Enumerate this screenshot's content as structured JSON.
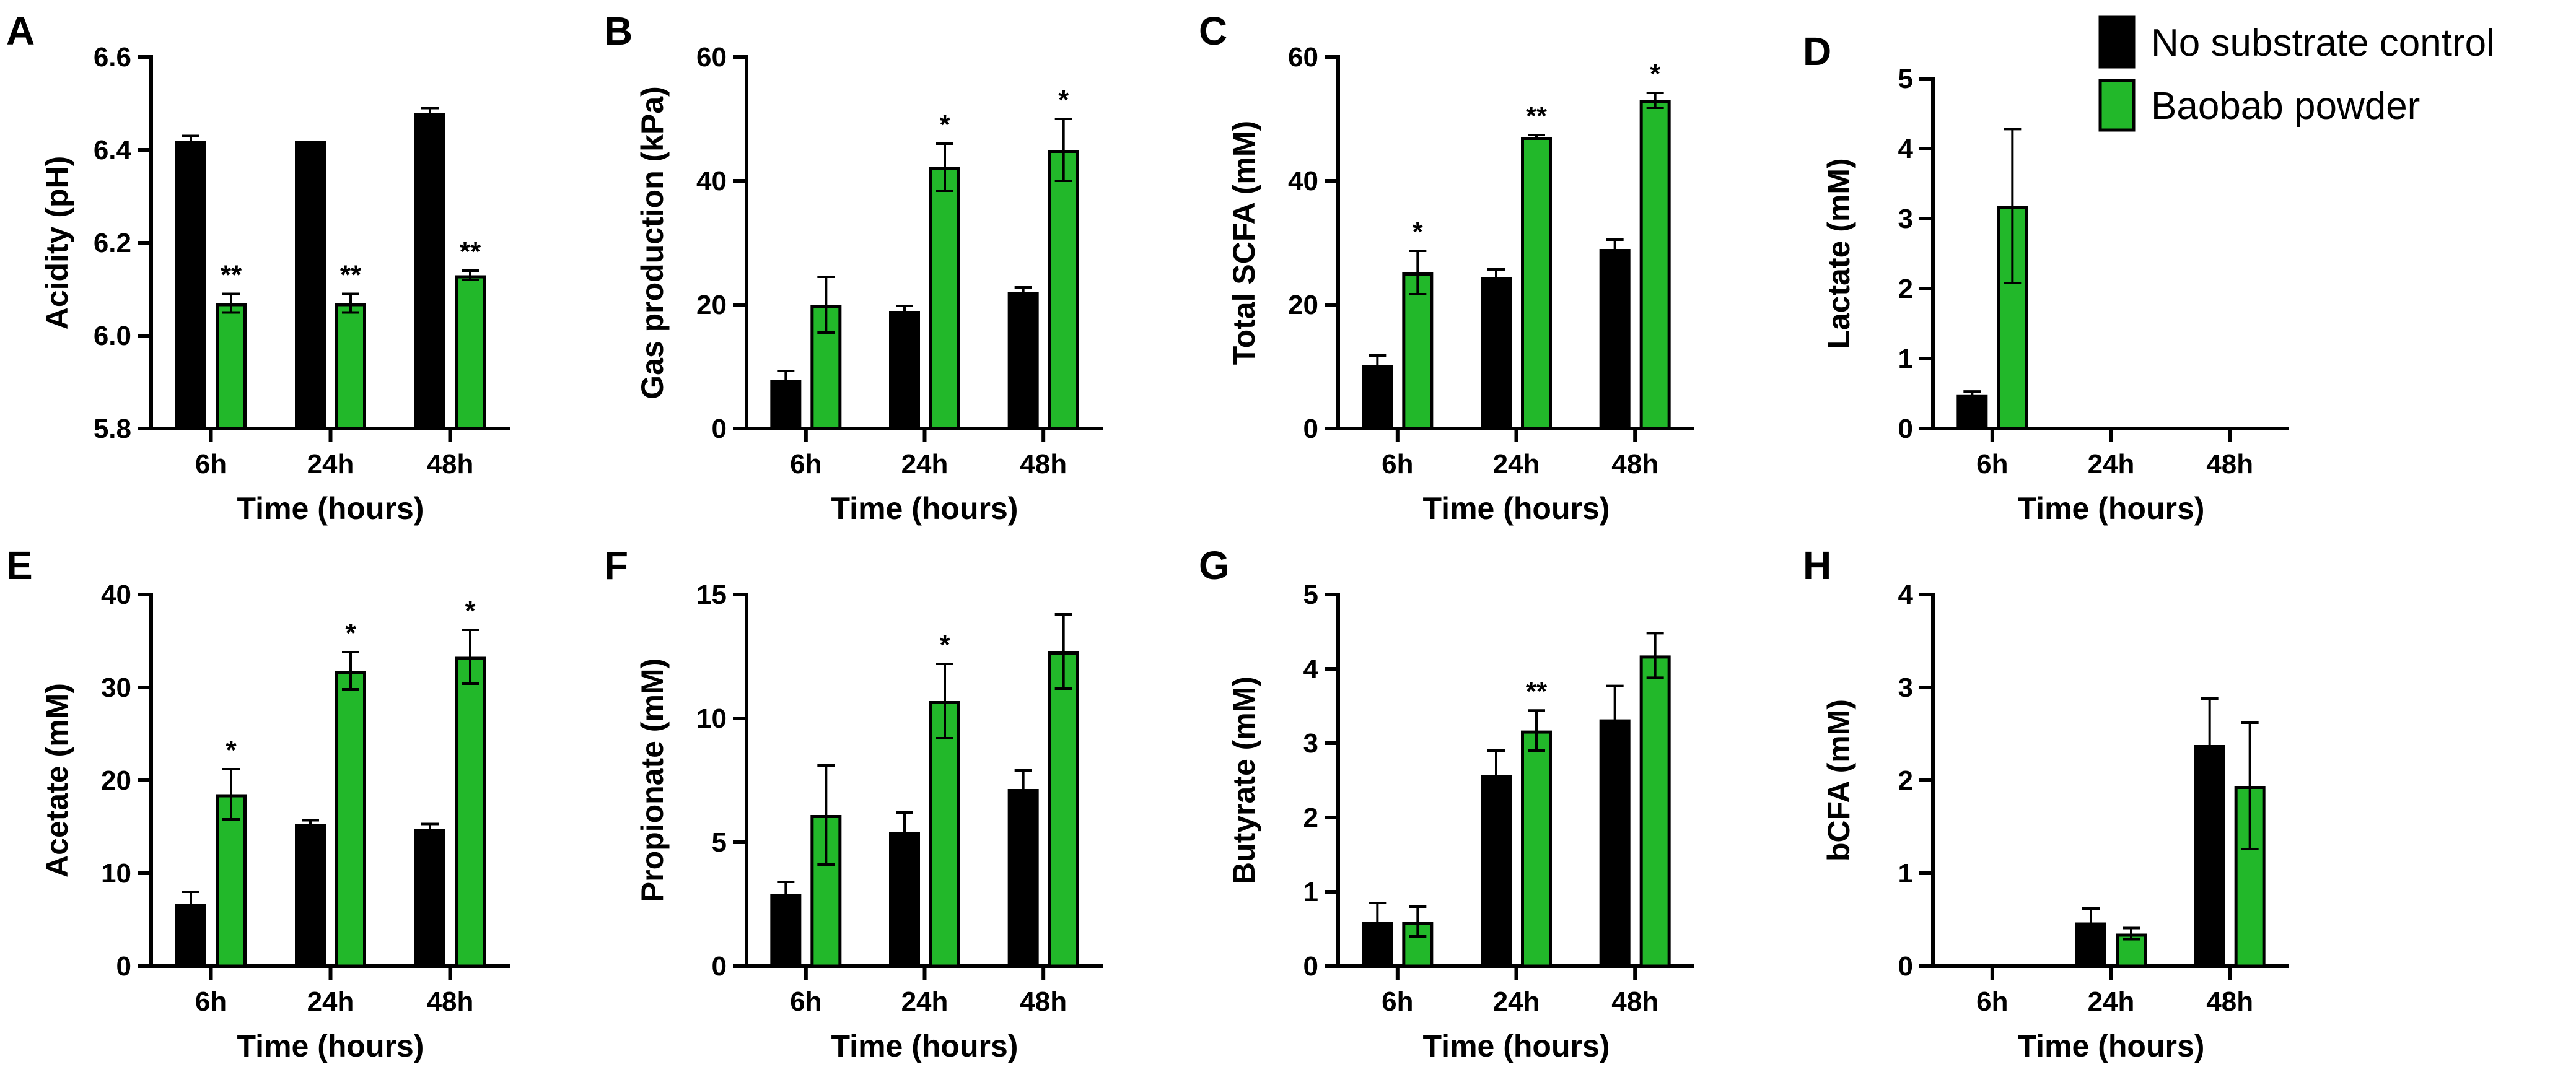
{
  "legend": {
    "items": [
      {
        "label": "No substrate control",
        "color": "#000000"
      },
      {
        "label": "Baobab powder",
        "color": "#22b82a"
      }
    ]
  },
  "colors": {
    "control": "#000000",
    "baobab": "#22b82a",
    "axis": "#000000"
  },
  "chart_data": [
    {
      "panel": "A",
      "type": "bar",
      "title": "",
      "xlabel": "Time (hours)",
      "ylabel": "Acidity (pH)",
      "categories": [
        "6h",
        "24h",
        "48h"
      ],
      "ylim": [
        5.8,
        6.6
      ],
      "yticks": [
        "5.8",
        "6.0",
        "6.2",
        "6.4",
        "6.6"
      ],
      "series": [
        {
          "name": "No substrate control",
          "values": [
            6.42,
            6.42,
            6.48
          ],
          "errors": [
            0.01,
            0.0,
            0.01
          ],
          "sig": [
            "",
            "",
            ""
          ]
        },
        {
          "name": "Baobab powder",
          "values": [
            6.07,
            6.07,
            6.13
          ],
          "errors": [
            0.02,
            0.02,
            0.01
          ],
          "sig": [
            "**",
            "**",
            "**"
          ]
        }
      ]
    },
    {
      "panel": "B",
      "type": "bar",
      "title": "",
      "xlabel": "Time (hours)",
      "ylabel": "Gas production (kPa)",
      "categories": [
        "6h",
        "24h",
        "48h"
      ],
      "ylim": [
        0,
        60
      ],
      "yticks": [
        "0",
        "20",
        "40",
        "60"
      ],
      "series": [
        {
          "name": "No substrate control",
          "values": [
            7.8,
            19,
            22
          ],
          "errors": [
            1.5,
            0.8,
            0.8
          ],
          "sig": [
            "",
            "",
            ""
          ]
        },
        {
          "name": "Baobab powder",
          "values": [
            20,
            42.2,
            45
          ],
          "errors": [
            4.5,
            3.8,
            5
          ],
          "sig": [
            "",
            "*",
            "*"
          ]
        }
      ]
    },
    {
      "panel": "C",
      "type": "bar",
      "title": "",
      "xlabel": "Time (hours)",
      "ylabel": "Total SCFA (mM)",
      "categories": [
        "6h",
        "24h",
        "48h"
      ],
      "ylim": [
        0,
        60
      ],
      "yticks": [
        "0",
        "20",
        "40",
        "60"
      ],
      "series": [
        {
          "name": "No substrate control",
          "values": [
            10.3,
            24.5,
            29
          ],
          "errors": [
            1.5,
            1.2,
            1.5
          ],
          "sig": [
            "",
            "",
            ""
          ]
        },
        {
          "name": "Baobab powder",
          "values": [
            25.2,
            47.1,
            53
          ],
          "errors": [
            3.5,
            0.3,
            1.2
          ],
          "sig": [
            "*",
            "**",
            "*"
          ]
        }
      ]
    },
    {
      "panel": "D",
      "type": "bar",
      "title": "",
      "xlabel": "Time (hours)",
      "ylabel": "Lactate (mM)",
      "categories": [
        "6h",
        "24h",
        "48h"
      ],
      "ylim": [
        0,
        5
      ],
      "yticks": [
        "0",
        "1",
        "2",
        "3",
        "4",
        "5"
      ],
      "series": [
        {
          "name": "No substrate control",
          "values": [
            0.48,
            0,
            0
          ],
          "errors": [
            0.05,
            0,
            0
          ],
          "sig": [
            "",
            "",
            ""
          ]
        },
        {
          "name": "Baobab powder",
          "values": [
            3.18,
            0,
            0
          ],
          "errors": [
            1.1,
            0,
            0
          ],
          "sig": [
            "",
            "",
            ""
          ]
        }
      ]
    },
    {
      "panel": "E",
      "type": "bar",
      "title": "",
      "xlabel": "Time (hours)",
      "ylabel": "Acetate (mM)",
      "categories": [
        "6h",
        "24h",
        "48h"
      ],
      "ylim": [
        0,
        40
      ],
      "yticks": [
        "0",
        "10",
        "20",
        "30",
        "40"
      ],
      "series": [
        {
          "name": "No substrate control",
          "values": [
            6.7,
            15.3,
            14.8
          ],
          "errors": [
            1.3,
            0.4,
            0.5
          ],
          "sig": [
            "",
            "",
            ""
          ]
        },
        {
          "name": "Baobab powder",
          "values": [
            18.5,
            31.8,
            33.3
          ],
          "errors": [
            2.7,
            2.0,
            2.9
          ],
          "sig": [
            "*",
            "*",
            "*"
          ]
        }
      ]
    },
    {
      "panel": "F",
      "type": "bar",
      "title": "",
      "xlabel": "Time (hours)",
      "ylabel": "Propionate (mM)",
      "categories": [
        "6h",
        "24h",
        "48h"
      ],
      "ylim": [
        0,
        15
      ],
      "yticks": [
        "0",
        "5",
        "10",
        "15"
      ],
      "series": [
        {
          "name": "No substrate control",
          "values": [
            2.9,
            5.4,
            7.15
          ],
          "errors": [
            0.5,
            0.8,
            0.75
          ],
          "sig": [
            "",
            "",
            ""
          ]
        },
        {
          "name": "Baobab powder",
          "values": [
            6.1,
            10.7,
            12.7
          ],
          "errors": [
            2.0,
            1.5,
            1.5
          ],
          "sig": [
            "",
            "*",
            ""
          ]
        }
      ]
    },
    {
      "panel": "G",
      "type": "bar",
      "title": "",
      "xlabel": "Time (hours)",
      "ylabel": "Butyrate (mM)",
      "categories": [
        "6h",
        "24h",
        "48h"
      ],
      "ylim": [
        0,
        5
      ],
      "yticks": [
        "0",
        "1",
        "2",
        "3",
        "4",
        "5"
      ],
      "series": [
        {
          "name": "No substrate control",
          "values": [
            0.6,
            2.57,
            3.32
          ],
          "errors": [
            0.25,
            0.33,
            0.45
          ],
          "sig": [
            "",
            "",
            ""
          ]
        },
        {
          "name": "Baobab powder",
          "values": [
            0.6,
            3.17,
            4.18
          ],
          "errors": [
            0.2,
            0.27,
            0.3
          ],
          "sig": [
            "",
            "**",
            ""
          ]
        }
      ]
    },
    {
      "panel": "H",
      "type": "bar",
      "title": "",
      "xlabel": "Time (hours)",
      "ylabel": "bCFA (mM)",
      "categories": [
        "6h",
        "24h",
        "48h"
      ],
      "ylim": [
        0,
        4
      ],
      "yticks": [
        "0",
        "1",
        "2",
        "3",
        "4"
      ],
      "series": [
        {
          "name": "No substrate control",
          "values": [
            0,
            0.47,
            2.38
          ],
          "errors": [
            0,
            0.15,
            0.5
          ],
          "sig": [
            "",
            "",
            ""
          ]
        },
        {
          "name": "Baobab powder",
          "values": [
            0,
            0.35,
            1.94
          ],
          "errors": [
            0,
            0.06,
            0.68
          ],
          "sig": [
            "",
            "",
            ""
          ]
        }
      ]
    }
  ]
}
